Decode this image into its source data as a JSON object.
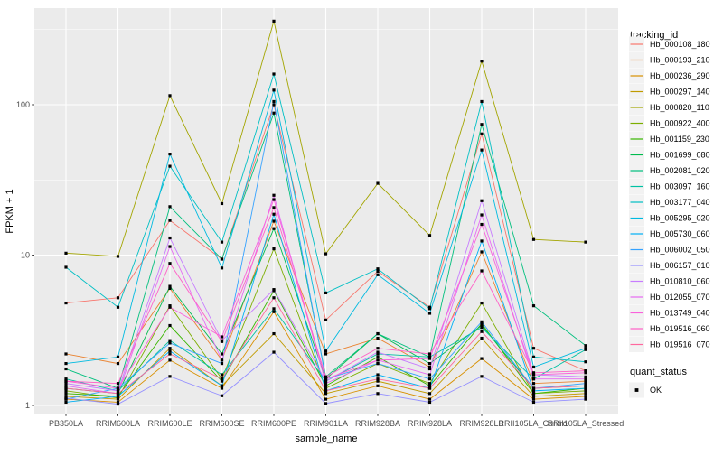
{
  "figure": {
    "panel_background": "#EBEBEB",
    "gridline_color": "#FFFFFF",
    "axis_text_color": "#4D4D4D",
    "tick_mark_color": "#333333",
    "point_color": "#000000",
    "legend_key_background": "#F2F2F2"
  },
  "legend": {
    "tracking_title": "tracking_id",
    "quant_title": "quant_status",
    "quant_items": [
      {
        "label": "OK",
        "symbol": "black-square-point"
      }
    ]
  },
  "chart_data": {
    "type": "line",
    "title": "",
    "xlabel": "sample_name",
    "ylabel": "FPKM + 1",
    "y_scale": "log10",
    "y_tick_labels": [
      "1",
      "10",
      "100"
    ],
    "y_ticks": [
      1,
      10,
      100
    ],
    "ylim": [
      0.88,
      440
    ],
    "grid": true,
    "legend_position": "right",
    "categories": [
      "PB350LA",
      "RRIM600LA",
      "RRIM600LE",
      "RRIM600SE",
      "RRIM600PE",
      "RRIM901LA",
      "RRIM928BA",
      "RRIM928LA",
      "RRIM928LB",
      "RRII105LA_Control",
      "RRII105LA_Stressed"
    ],
    "point_status_all": "OK",
    "series": [
      {
        "name": "Hb_000108_180",
        "color": "#F8766D",
        "values": [
          4.8,
          5.2,
          17,
          9.4,
          100,
          3.7,
          7.8,
          4.5,
          64,
          2.4,
          1.7
        ]
      },
      {
        "name": "Hb_000193_210",
        "color": "#EA8331",
        "values": [
          2.2,
          1.9,
          6.0,
          2.0,
          16.8,
          2.2,
          2.8,
          1.8,
          10.5,
          1.4,
          1.45
        ]
      },
      {
        "name": "Hb_000236_290",
        "color": "#D89000",
        "values": [
          1.1,
          1.05,
          2.0,
          1.3,
          4.2,
          1.1,
          1.35,
          1.1,
          2.05,
          1.1,
          1.15
        ]
      },
      {
        "name": "Hb_000297_140",
        "color": "#C09B00",
        "values": [
          1.15,
          1.1,
          2.4,
          1.35,
          3.0,
          1.2,
          1.45,
          1.2,
          2.8,
          1.15,
          1.2
        ]
      },
      {
        "name": "Hb_000820_110",
        "color": "#A3A500",
        "values": [
          10.3,
          9.8,
          115,
          22,
          360,
          10.2,
          30,
          13.5,
          195,
          12.7,
          12.2
        ]
      },
      {
        "name": "Hb_000922_400",
        "color": "#7CAE00",
        "values": [
          1.25,
          1.12,
          4.6,
          1.5,
          11,
          1.3,
          1.9,
          1.4,
          4.8,
          1.2,
          1.25
        ]
      },
      {
        "name": "Hb_001159_230",
        "color": "#39B600",
        "values": [
          1.2,
          1.15,
          3.4,
          1.45,
          5.8,
          1.35,
          2.1,
          1.35,
          3.5,
          1.2,
          1.3
        ]
      },
      {
        "name": "Hb_001699_080",
        "color": "#00BB4E",
        "values": [
          1.3,
          1.2,
          6.2,
          2.2,
          15,
          1.5,
          3.0,
          1.9,
          3.4,
          1.3,
          1.35
        ]
      },
      {
        "name": "Hb_002081_020",
        "color": "#00BF7D",
        "values": [
          1.75,
          1.3,
          21,
          9.4,
          88,
          1.55,
          3.0,
          2.1,
          74,
          4.6,
          2.5
        ]
      },
      {
        "name": "Hb_003097_160",
        "color": "#00C1A3",
        "values": [
          1.5,
          1.25,
          2.7,
          1.6,
          4.4,
          1.45,
          2.2,
          2.1,
          3.3,
          1.5,
          2.35
        ]
      },
      {
        "name": "Hb_003177_040",
        "color": "#00BFC4",
        "values": [
          8.3,
          4.5,
          39,
          12.2,
          160,
          5.6,
          8.1,
          4.4,
          105,
          2.1,
          1.95
        ]
      },
      {
        "name": "Hb_005295_020",
        "color": "#00BAE0",
        "values": [
          1.9,
          2.1,
          47,
          8.2,
          125,
          2.3,
          7.4,
          4.1,
          50,
          1.8,
          2.4
        ]
      },
      {
        "name": "Hb_005730_060",
        "color": "#00B0F6",
        "values": [
          1.05,
          1.15,
          2.3,
          1.35,
          18.7,
          1.25,
          1.6,
          1.3,
          12.4,
          1.25,
          1.3
        ]
      },
      {
        "name": "Hb_006002_050",
        "color": "#35A2FF",
        "values": [
          1.1,
          1.3,
          2.6,
          1.9,
          105,
          1.5,
          1.9,
          1.5,
          3.6,
          1.3,
          1.4
        ]
      },
      {
        "name": "Hb_006157_010",
        "color": "#9590FF",
        "values": [
          1.12,
          1.02,
          1.56,
          1.16,
          2.26,
          1.03,
          1.2,
          1.05,
          1.56,
          1.05,
          1.1
        ]
      },
      {
        "name": "Hb_010810_060",
        "color": "#C77CFF",
        "values": [
          1.4,
          1.25,
          13,
          2.7,
          5.9,
          1.45,
          2.26,
          1.75,
          23,
          1.6,
          1.55
        ]
      },
      {
        "name": "Hb_012055_070",
        "color": "#E76BF3",
        "values": [
          1.35,
          1.2,
          11.4,
          2.0,
          25,
          1.4,
          2.0,
          1.6,
          18.5,
          1.5,
          1.5
        ]
      },
      {
        "name": "Hb_013749_040",
        "color": "#FA62DB",
        "values": [
          1.45,
          1.3,
          4.5,
          2.86,
          23.4,
          1.5,
          2.0,
          2.05,
          16,
          1.6,
          1.65
        ]
      },
      {
        "name": "Hb_019516_060",
        "color": "#FF61C7",
        "values": [
          1.45,
          1.4,
          8.8,
          2.66,
          20.7,
          1.55,
          2.4,
          2.2,
          7.85,
          1.65,
          1.7
        ]
      },
      {
        "name": "Hb_019516_070",
        "color": "#FF689E",
        "values": [
          1.3,
          1.2,
          2.2,
          1.5,
          5.2,
          1.25,
          1.5,
          1.3,
          3.1,
          1.3,
          1.35
        ]
      }
    ]
  }
}
